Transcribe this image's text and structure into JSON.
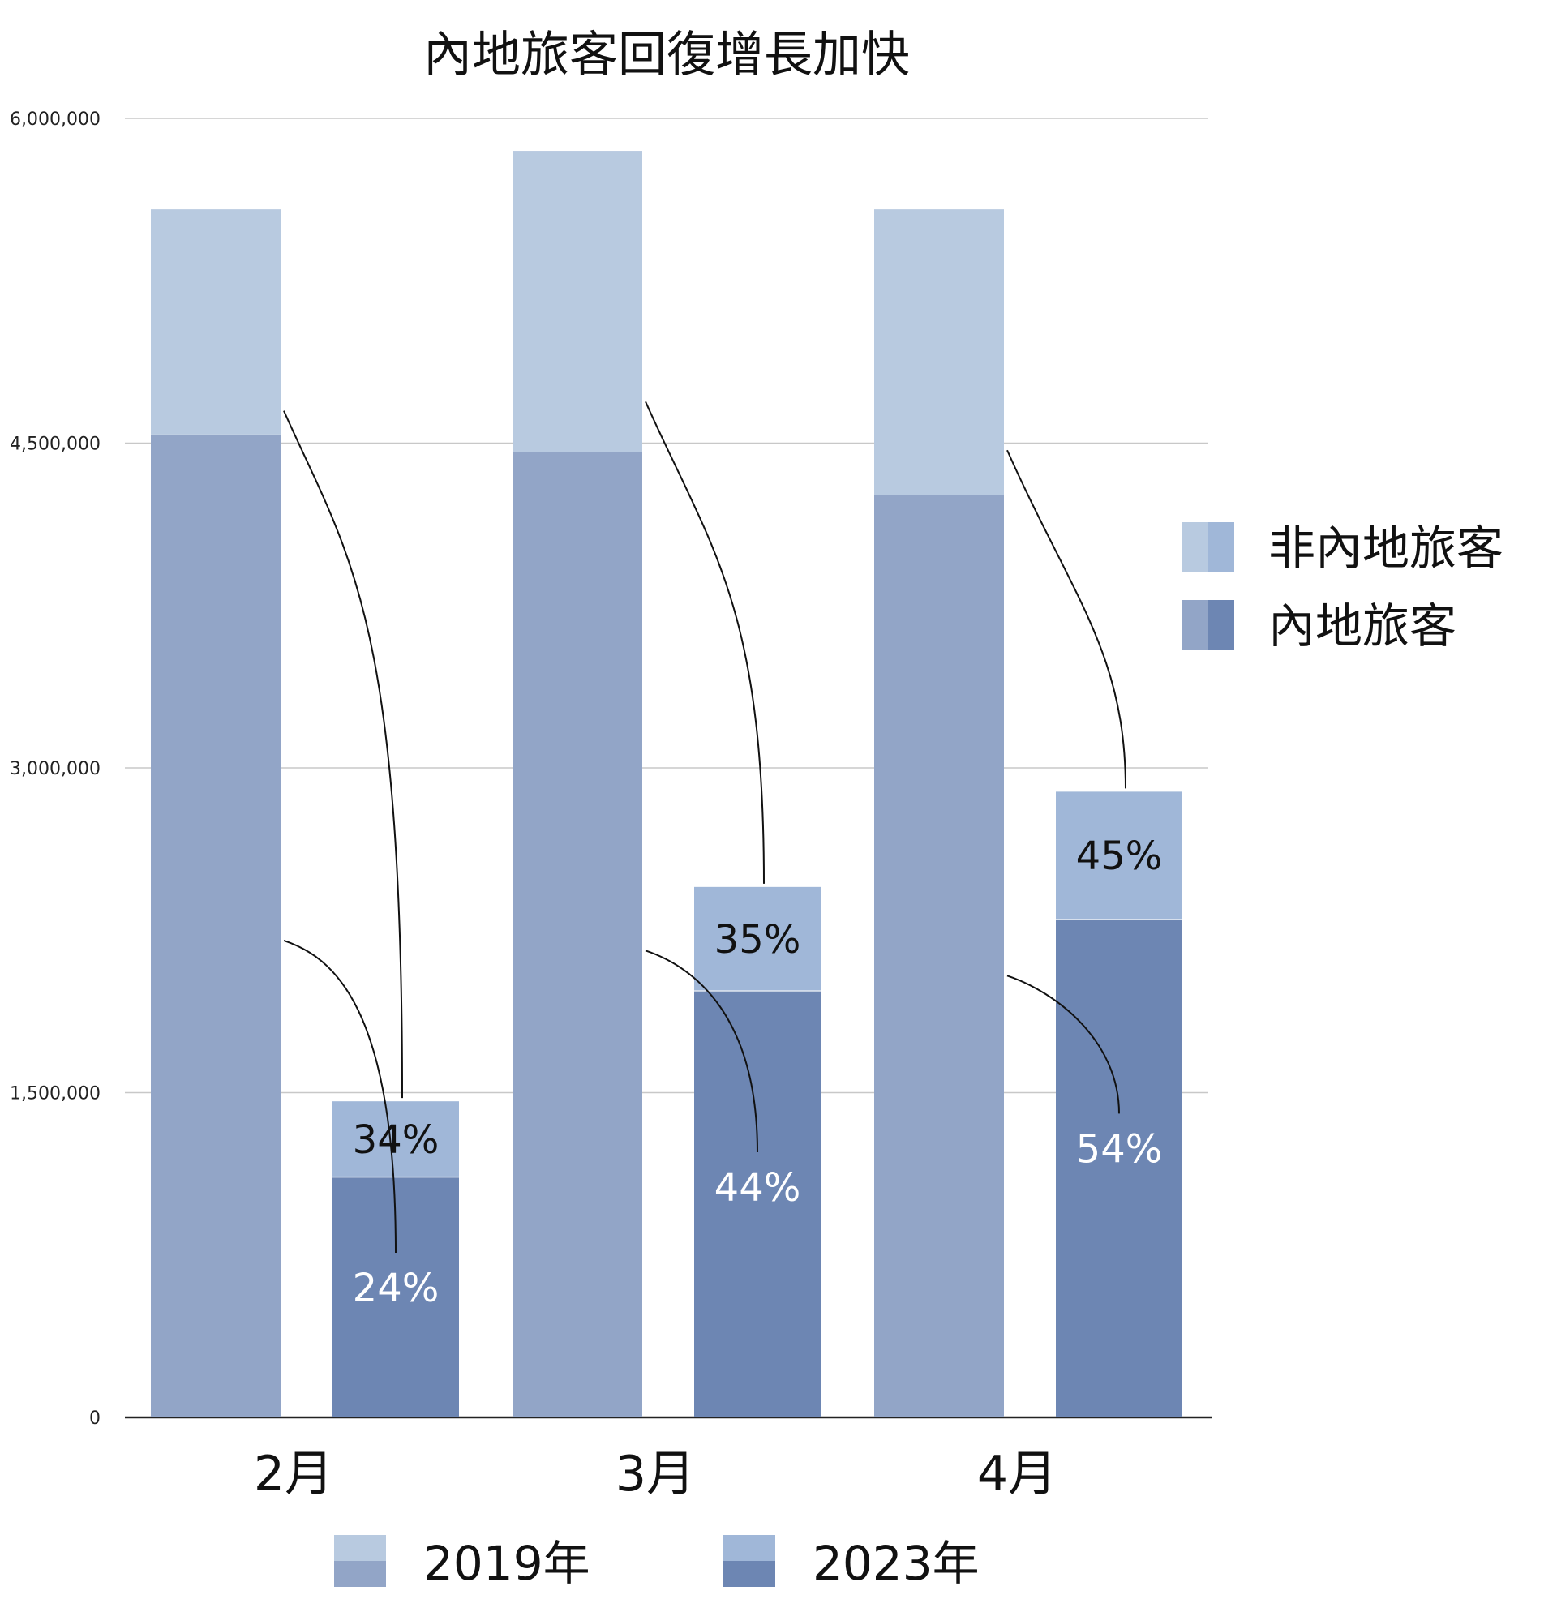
{
  "chart_data": {
    "type": "bar",
    "title": "內地旅客回復增長加快",
    "categories": [
      "2月",
      "3月",
      "4月"
    ],
    "y_ticks": [
      "0",
      "1,500,000",
      "3,000,000",
      "4,500,000",
      "6,000,000"
    ],
    "ylim": [
      0,
      6000000
    ],
    "grid": true,
    "stacks": [
      "內地旅客",
      "非內地旅客"
    ],
    "years": [
      "2019年",
      "2023年"
    ],
    "series": [
      {
        "name": "內地旅客",
        "year": "2019年",
        "values": [
          4540000,
          4460000,
          4260000
        ]
      },
      {
        "name": "非內地旅客",
        "year": "2019年",
        "values": [
          1040000,
          1390000,
          1320000
        ]
      },
      {
        "name": "內地旅客",
        "year": "2023年",
        "values": [
          1110000,
          1970000,
          2300000
        ]
      },
      {
        "name": "非內地旅客",
        "year": "2023年",
        "values": [
          350000,
          480000,
          590000
        ]
      }
    ],
    "percent_labels": {
      "mainland": [
        "24%",
        "44%",
        "54%"
      ],
      "non_mainland": [
        "34%",
        "35%",
        "45%"
      ]
    },
    "legend_placement": "right (stack) and bottom (year)",
    "colors": {
      "mainland_2019": "#92a5c7",
      "mainland_2023": "#6d86b3",
      "non_mainland_2019": "#b8cae0",
      "non_mainland_2023": "#a0b7d8",
      "grid": "#c8c8c8",
      "axis": "#222222",
      "connector": "#111111"
    }
  }
}
